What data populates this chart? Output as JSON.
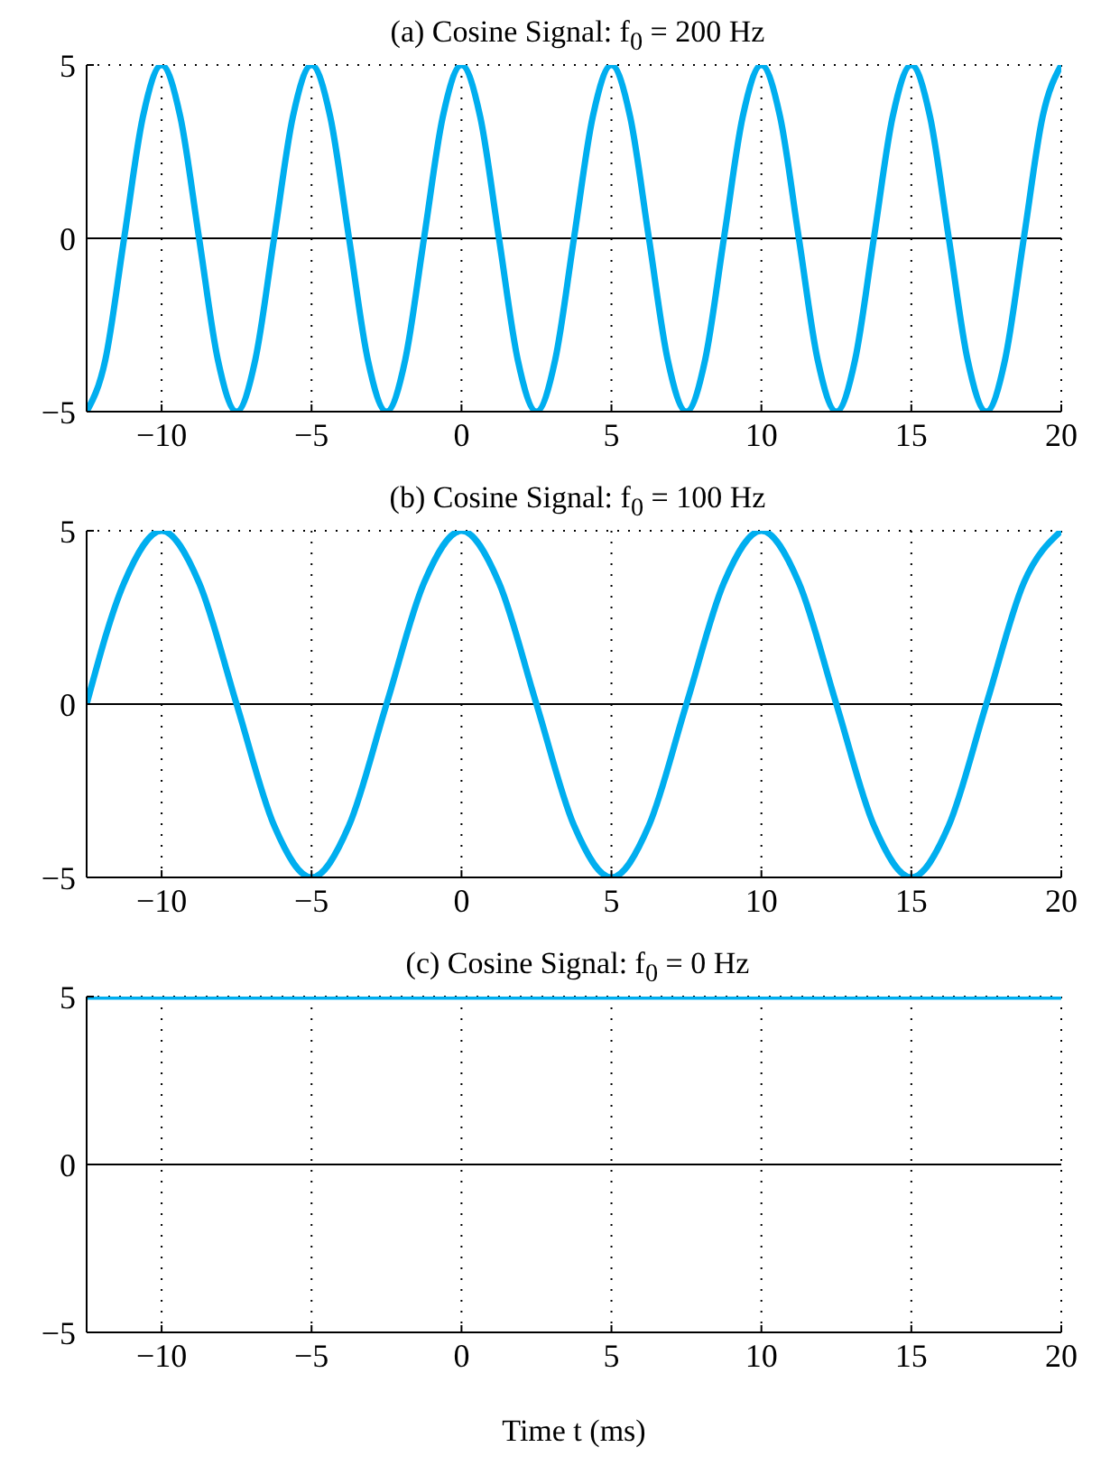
{
  "chart_data": [
    {
      "type": "line",
      "title": "(a) Cosine Signal: f$_{0}$ = 200 Hz",
      "xlim": [
        -12.5,
        20
      ],
      "xticks": [
        -10,
        -5,
        0,
        5,
        10,
        15,
        20
      ],
      "ylim": [
        -5,
        5
      ],
      "yticks": [
        -5,
        0,
        5
      ],
      "grid": true,
      "ref_lines": [
        {
          "axis": "y",
          "value": 0,
          "color": "#000000"
        }
      ],
      "series": [
        {
          "color": "#00aeef",
          "x": [
            -12.5,
            -11.875,
            -11.25,
            -10.625,
            -10,
            -9.375,
            -8.75,
            -8.125,
            -7.5,
            -6.875,
            -6.25,
            -5.625,
            -5,
            -4.375,
            -3.75,
            -3.125,
            -2.5,
            -1.875,
            -1.25,
            -0.625,
            0,
            0.625,
            1.25,
            1.875,
            2.5,
            3.125,
            3.75,
            4.375,
            5,
            5.625,
            6.25,
            6.875,
            7.5,
            8.125,
            8.75,
            9.375,
            10,
            10.625,
            11.25,
            11.875,
            12.5,
            13.125,
            13.75,
            14.375,
            15,
            15.625,
            16.25,
            16.875,
            17.5,
            18.125,
            18.75,
            19.375,
            20
          ],
          "values": [
            -5,
            -3.5,
            0,
            3.5,
            5,
            3.5,
            0,
            -3.5,
            -5,
            -3.5,
            0,
            3.5,
            5,
            3.5,
            0,
            -3.5,
            -5,
            -3.5,
            0,
            3.5,
            5,
            3.5,
            0,
            -3.5,
            -5,
            -3.5,
            0,
            3.5,
            5,
            3.5,
            0,
            -3.5,
            -5,
            -3.5,
            0,
            3.5,
            5,
            3.5,
            0,
            -3.5,
            -5,
            -3.5,
            0,
            3.5,
            5,
            3.5,
            0,
            -3.5,
            -5,
            -3.5,
            0,
            3.5,
            5
          ]
        }
      ]
    },
    {
      "type": "line",
      "title": "(b) Cosine Signal: f$_{0}$ = 100 Hz",
      "xlim": [
        -12.5,
        20
      ],
      "xticks": [
        -10,
        -5,
        0,
        5,
        10,
        15,
        20
      ],
      "ylim": [
        -5,
        5
      ],
      "yticks": [
        -5,
        0,
        5
      ],
      "grid": true,
      "ref_lines": [
        {
          "axis": "y",
          "value": 0,
          "color": "#000000"
        }
      ],
      "series": [
        {
          "color": "#00aeef",
          "x": [
            -12.5,
            -11.25,
            -10,
            -8.75,
            -7.5,
            -6.25,
            -5,
            -3.75,
            -2.5,
            -1.25,
            0,
            1.25,
            2.5,
            3.75,
            5,
            6.25,
            7.5,
            8.75,
            10,
            11.25,
            12.5,
            13.75,
            15,
            16.25,
            17.5,
            18.75,
            20
          ],
          "values": [
            0,
            3.5,
            5,
            3.5,
            0,
            -3.5,
            -5,
            -3.5,
            0,
            3.5,
            5,
            3.5,
            0,
            -3.5,
            -5,
            -3.5,
            0,
            3.5,
            5,
            3.5,
            0,
            -3.5,
            -5,
            -3.5,
            0,
            3.5,
            5
          ]
        }
      ]
    },
    {
      "type": "line",
      "title": "(c) Cosine Signal: f$_{0}$ = 0 Hz",
      "xlabel": "Time t (ms)",
      "xlim": [
        -12.5,
        20
      ],
      "xticks": [
        -10,
        -5,
        0,
        5,
        10,
        15,
        20
      ],
      "ylim": [
        -5,
        5
      ],
      "yticks": [
        -5,
        0,
        5
      ],
      "grid": true,
      "ref_lines": [
        {
          "axis": "y",
          "value": 0,
          "color": "#000000"
        }
      ],
      "series": [
        {
          "color": "#00aeef",
          "x": [
            -12.5,
            -5,
            5,
            20
          ],
          "values": [
            5,
            5,
            5,
            5
          ]
        }
      ]
    }
  ]
}
